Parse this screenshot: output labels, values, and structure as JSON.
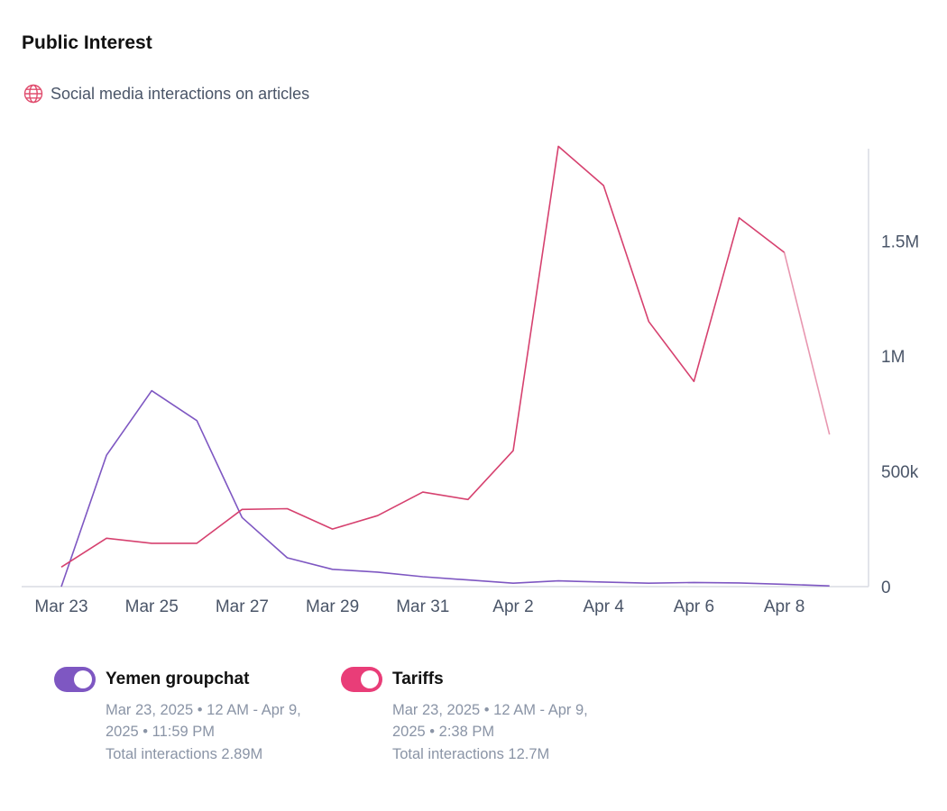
{
  "header": {
    "title": "Public Interest",
    "subtitle": "Social media interactions on articles",
    "subtitle_icon": "globe-icon"
  },
  "colors": {
    "yemen": "#7e57c2",
    "tariffs_line": "#d6416f",
    "tariffs_toggle": "#e93d78",
    "axis": "#d9dce3",
    "text_muted": "#8a94a6"
  },
  "legend": [
    {
      "name": "Yemen groupchat",
      "range": "Mar 23, 2025 • 12 AM - Apr 9, 2025 • 11:59 PM",
      "total": "Total interactions 2.89M",
      "enabled": true
    },
    {
      "name": "Tariffs",
      "range": "Mar 23, 2025 • 12 AM - Apr 9, 2025 • 2:38 PM",
      "total": "Total interactions 12.7M",
      "enabled": true
    }
  ],
  "chart_data": {
    "type": "line",
    "x": [
      "2025-03-23",
      "2025-03-24",
      "2025-03-25",
      "2025-03-26",
      "2025-03-27",
      "2025-03-28",
      "2025-03-29",
      "2025-03-30",
      "2025-03-31",
      "2025-04-01",
      "2025-04-02",
      "2025-04-03",
      "2025-04-04",
      "2025-04-05",
      "2025-04-06",
      "2025-04-07",
      "2025-04-08",
      "2025-04-09"
    ],
    "x_tick_labels": [
      "Mar 23",
      "Mar 25",
      "Mar 27",
      "Mar 29",
      "Mar 31",
      "Apr 2",
      "Apr 4",
      "Apr 6",
      "Apr 8"
    ],
    "y_ticks": [
      0,
      500000,
      1000000,
      1500000
    ],
    "y_tick_labels": [
      "0",
      "500k",
      "1M",
      "1.5M"
    ],
    "ylim": [
      0,
      1900000
    ],
    "y_axis_position": "right",
    "grid": false,
    "legend_position": "bottom",
    "series": [
      {
        "name": "Yemen groupchat",
        "values": [
          0,
          570000,
          850000,
          720000,
          300000,
          125000,
          75000,
          63000,
          43000,
          29000,
          15000,
          25000,
          20000,
          15000,
          18000,
          16000,
          10000,
          3000
        ]
      },
      {
        "name": "Tariffs",
        "values": [
          85000,
          210000,
          188000,
          188000,
          335000,
          338000,
          250000,
          308000,
          410000,
          378000,
          590000,
          1910000,
          1740000,
          1150000,
          890000,
          1600000,
          1450000,
          660000
        ],
        "partial_last_point": true
      }
    ]
  }
}
